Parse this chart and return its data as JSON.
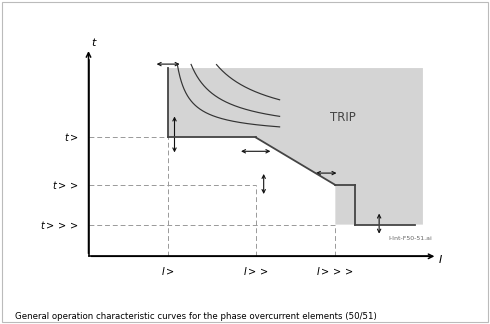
{
  "bg_color": "#ffffff",
  "gray_fill": "#d4d4d4",
  "title_text": "General operation characteristic curves for the phase overcurrent elements (50/51)",
  "watermark": "I-Int-F50-51.ai",
  "trip_label": "TRIP",
  "xlabel": "I",
  "ylabel": "t",
  "i_gt": 1.0,
  "i_gtgt": 2.1,
  "i_gtgtgt": 3.1,
  "t_gt": 0.6,
  "t_gtgt": 0.36,
  "t_gtgtgt": 0.16,
  "x_max": 4.2,
  "y_max": 0.95,
  "curve_color": "#333333",
  "step_color": "#444444",
  "dashed_color": "#999999",
  "arrow_color": "#111111",
  "border_color": "#aaaaaa"
}
